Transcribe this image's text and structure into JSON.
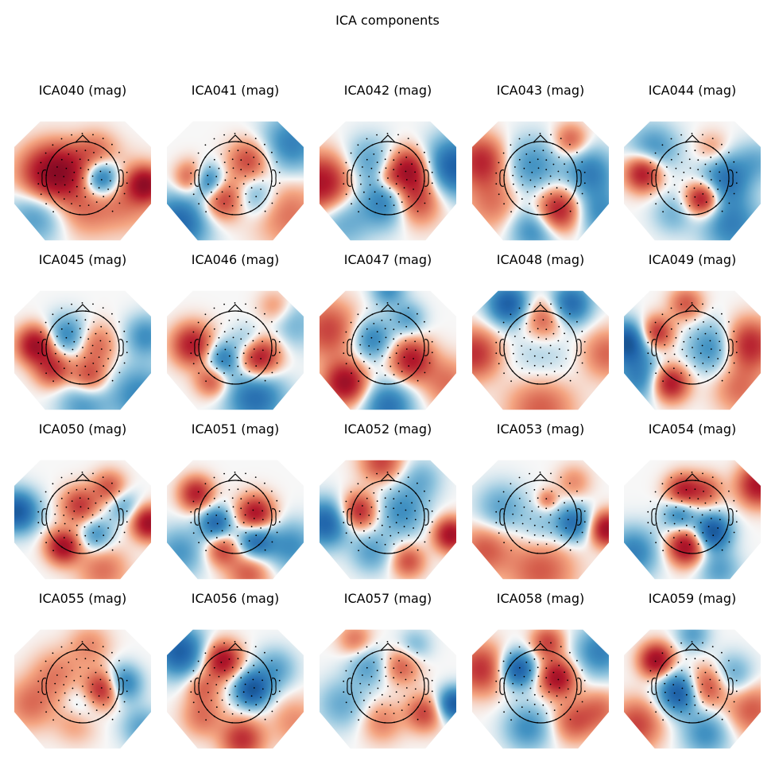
{
  "figure": {
    "title": "ICA components"
  },
  "chart_data": {
    "type": "topomap-grid",
    "title": "ICA components",
    "rows": 4,
    "cols": 5,
    "colormap": {
      "negative": "#053061",
      "mid": "#f7f7f7",
      "positive": "#67001f"
    },
    "components": [
      {
        "label": "ICA040 (mag)",
        "blobs": [
          [
            -0.55,
            0.05,
            0.9,
            0.35
          ],
          [
            0.28,
            0.0,
            -0.95,
            0.22
          ],
          [
            -0.25,
            0.15,
            0.55,
            0.3
          ],
          [
            0.65,
            -0.3,
            0.4,
            0.4
          ],
          [
            0.0,
            -0.5,
            0.35,
            0.35
          ],
          [
            -0.7,
            -0.6,
            -0.5,
            0.35
          ],
          [
            0.2,
            0.45,
            0.4,
            0.25
          ],
          [
            0.95,
            -0.1,
            0.9,
            0.2
          ]
        ]
      },
      {
        "label": "ICA041 (mag)",
        "blobs": [
          [
            -0.45,
            -0.05,
            -0.95,
            0.2
          ],
          [
            -0.65,
            0.0,
            0.75,
            0.2
          ],
          [
            0.2,
            0.3,
            0.6,
            0.25
          ],
          [
            -0.2,
            -0.35,
            0.7,
            0.25
          ],
          [
            0.3,
            -0.3,
            -0.4,
            0.25
          ],
          [
            -0.85,
            -0.75,
            -0.8,
            0.35
          ],
          [
            0.85,
            0.6,
            -0.6,
            0.35
          ],
          [
            0.8,
            -0.6,
            0.4,
            0.4
          ]
        ]
      },
      {
        "label": "ICA042 (mag)",
        "blobs": [
          [
            0.3,
            0.15,
            0.95,
            0.25
          ],
          [
            0.4,
            -0.35,
            0.75,
            0.3
          ],
          [
            -1.0,
            -0.1,
            0.95,
            0.35
          ],
          [
            1.0,
            0.2,
            -0.9,
            0.35
          ],
          [
            0.0,
            -0.4,
            -0.7,
            0.3
          ],
          [
            -0.3,
            0.3,
            -0.4,
            0.3
          ],
          [
            -0.7,
            -0.7,
            -0.4,
            0.35
          ],
          [
            0.0,
            0.0,
            0.3,
            0.15
          ]
        ]
      },
      {
        "label": "ICA043 (mag)",
        "blobs": [
          [
            0.25,
            -0.55,
            0.95,
            0.27
          ],
          [
            -0.9,
            0.3,
            0.75,
            0.3
          ],
          [
            -0.15,
            0.2,
            -0.5,
            0.35
          ],
          [
            0.75,
            0.1,
            -0.6,
            0.3
          ],
          [
            -0.1,
            -0.85,
            -0.6,
            0.3
          ],
          [
            0.9,
            -0.6,
            -0.5,
            0.3
          ],
          [
            0.45,
            0.65,
            0.5,
            0.2
          ],
          [
            -0.7,
            -0.4,
            0.4,
            0.35
          ]
        ]
      },
      {
        "label": "ICA044 (mag)",
        "blobs": [
          [
            0.15,
            -0.35,
            1.0,
            0.2
          ],
          [
            -0.75,
            0.1,
            0.95,
            0.22
          ],
          [
            0.5,
            0.0,
            -0.7,
            0.3
          ],
          [
            0.6,
            -0.8,
            -0.6,
            0.35
          ],
          [
            -0.6,
            0.5,
            -0.5,
            0.3
          ],
          [
            -0.3,
            -0.6,
            -0.3,
            0.25
          ],
          [
            1.0,
            0.3,
            -0.3,
            0.25
          ],
          [
            0.3,
            0.5,
            0.3,
            0.2
          ]
        ]
      },
      {
        "label": "ICA045 (mag)",
        "blobs": [
          [
            -0.72,
            0.05,
            1.0,
            0.22
          ],
          [
            -0.45,
            -0.35,
            0.7,
            0.22
          ],
          [
            0.1,
            -0.5,
            0.6,
            0.22
          ],
          [
            0.2,
            0.05,
            0.45,
            0.25
          ],
          [
            -0.25,
            0.2,
            -0.6,
            0.25
          ],
          [
            0.85,
            -0.8,
            -0.55,
            0.35
          ],
          [
            0.95,
            0.2,
            -0.5,
            0.25
          ],
          [
            0.0,
            -0.95,
            -0.45,
            0.3
          ]
        ]
      },
      {
        "label": "ICA046 (mag)",
        "blobs": [
          [
            0.35,
            -0.15,
            1.0,
            0.25
          ],
          [
            -0.65,
            0.05,
            0.85,
            0.25
          ],
          [
            -0.2,
            -0.2,
            -0.7,
            0.22
          ],
          [
            0.2,
            0.1,
            -0.4,
            0.2
          ],
          [
            0.3,
            -0.85,
            -0.75,
            0.35
          ],
          [
            -0.35,
            -0.55,
            0.6,
            0.2
          ],
          [
            0.9,
            0.4,
            -0.3,
            0.3
          ],
          [
            0.6,
            0.7,
            0.3,
            0.2
          ]
        ]
      },
      {
        "label": "ICA047 (mag)",
        "blobs": [
          [
            -0.65,
            -0.6,
            1.0,
            0.25
          ],
          [
            0.35,
            -0.2,
            0.85,
            0.25
          ],
          [
            -0.25,
            0.15,
            -0.6,
            0.25
          ],
          [
            0.3,
            0.5,
            -0.4,
            0.2
          ],
          [
            0.0,
            -1.0,
            -0.7,
            0.3
          ],
          [
            -0.9,
            0.3,
            0.6,
            0.35
          ],
          [
            0.0,
            1.0,
            -0.5,
            0.2
          ],
          [
            0.9,
            -0.6,
            0.4,
            0.3
          ]
        ]
      },
      {
        "label": "ICA048 (mag)",
        "blobs": [
          [
            -0.5,
            0.75,
            -0.9,
            0.25
          ],
          [
            0.45,
            0.75,
            -0.8,
            0.25
          ],
          [
            0.05,
            0.5,
            0.55,
            0.25
          ],
          [
            0.0,
            -1.0,
            0.5,
            0.4
          ],
          [
            -1.0,
            -0.1,
            0.7,
            0.3
          ],
          [
            1.0,
            -0.1,
            0.45,
            0.3
          ],
          [
            0.0,
            -0.2,
            -0.2,
            0.4
          ]
        ]
      },
      {
        "label": "ICA049 (mag)",
        "blobs": [
          [
            -1.0,
            0.1,
            -1.0,
            0.25
          ],
          [
            -0.35,
            -0.6,
            0.95,
            0.22
          ],
          [
            -0.55,
            0.25,
            0.75,
            0.2
          ],
          [
            0.3,
            0.0,
            -0.55,
            0.3
          ],
          [
            0.85,
            0.05,
            0.8,
            0.3
          ],
          [
            -0.1,
            0.75,
            0.5,
            0.2
          ],
          [
            0.7,
            -0.7,
            0.4,
            0.3
          ],
          [
            -0.8,
            -0.5,
            -0.6,
            0.3
          ]
        ]
      },
      {
        "label": "ICA050 (mag)",
        "blobs": [
          [
            -1.0,
            0.1,
            -0.95,
            0.25
          ],
          [
            1.0,
            -0.1,
            1.0,
            0.2
          ],
          [
            -0.3,
            -0.5,
            0.95,
            0.2
          ],
          [
            -0.05,
            0.2,
            0.65,
            0.22
          ],
          [
            0.4,
            0.5,
            0.55,
            0.2
          ],
          [
            0.2,
            -0.3,
            -0.5,
            0.2
          ],
          [
            0.6,
            0.2,
            -0.4,
            0.2
          ],
          [
            0.3,
            -0.9,
            0.4,
            0.3
          ]
        ]
      },
      {
        "label": "ICA051 (mag)",
        "blobs": [
          [
            0.3,
            0.05,
            0.95,
            0.22
          ],
          [
            -0.6,
            0.4,
            0.8,
            0.2
          ],
          [
            -0.3,
            -0.1,
            -0.8,
            0.2
          ],
          [
            0.3,
            -0.4,
            -0.8,
            0.22
          ],
          [
            -0.2,
            -0.55,
            0.6,
            0.2
          ],
          [
            0.85,
            -0.5,
            -0.5,
            0.3
          ],
          [
            -0.85,
            -0.6,
            -0.45,
            0.3
          ],
          [
            0.2,
            -0.95,
            0.5,
            0.25
          ]
        ]
      },
      {
        "label": "ICA052 (mag)",
        "blobs": [
          [
            -0.45,
            0.1,
            0.8,
            0.22
          ],
          [
            -0.95,
            -0.1,
            -0.85,
            0.28
          ],
          [
            0.95,
            -0.3,
            0.95,
            0.2
          ],
          [
            -0.1,
            0.95,
            0.6,
            0.25
          ],
          [
            0.3,
            -0.75,
            0.55,
            0.2
          ],
          [
            0.2,
            0.1,
            -0.5,
            0.3
          ],
          [
            -0.25,
            -0.6,
            -0.4,
            0.25
          ],
          [
            0.5,
            0.65,
            -0.3,
            0.25
          ]
        ]
      },
      {
        "label": "ICA053 (mag)",
        "blobs": [
          [
            1.0,
            -0.2,
            1.0,
            0.2
          ],
          [
            0.5,
            -0.1,
            -0.75,
            0.22
          ],
          [
            0.0,
            -0.9,
            0.5,
            0.4
          ],
          [
            -0.85,
            -0.55,
            0.5,
            0.3
          ],
          [
            -0.6,
            0.15,
            -0.4,
            0.3
          ],
          [
            0.1,
            0.3,
            0.4,
            0.12
          ],
          [
            0.5,
            0.6,
            0.3,
            0.2
          ],
          [
            0.0,
            -0.2,
            -0.25,
            0.25
          ]
        ]
      },
      {
        "label": "ICA054 (mag)",
        "blobs": [
          [
            0.3,
            -0.25,
            -1.0,
            0.22
          ],
          [
            -0.1,
            -0.5,
            1.0,
            0.22
          ],
          [
            -0.15,
            0.45,
            0.8,
            0.2
          ],
          [
            -0.2,
            0.05,
            -0.6,
            0.2
          ],
          [
            1.0,
            0.55,
            0.9,
            0.25
          ],
          [
            0.2,
            0.45,
            0.5,
            0.2
          ],
          [
            -0.9,
            -0.6,
            -0.6,
            0.3
          ],
          [
            0.4,
            -0.9,
            -0.4,
            0.25
          ]
        ]
      },
      {
        "label": "ICA055 (mag)",
        "blobs": [
          [
            0.3,
            -0.05,
            0.9,
            0.22
          ],
          [
            0.6,
            0.05,
            -0.7,
            0.22
          ],
          [
            -0.4,
            0.2,
            0.35,
            0.3
          ],
          [
            0.0,
            -0.3,
            -0.3,
            0.25
          ],
          [
            -0.1,
            -0.6,
            0.3,
            0.25
          ],
          [
            0.9,
            -0.7,
            -0.4,
            0.25
          ],
          [
            0.1,
            0.7,
            0.3,
            0.25
          ],
          [
            -0.8,
            -0.3,
            0.4,
            0.3
          ]
        ]
      },
      {
        "label": "ICA056 (mag)",
        "blobs": [
          [
            -0.2,
            0.45,
            0.95,
            0.22
          ],
          [
            0.25,
            -0.05,
            -0.95,
            0.22
          ],
          [
            -0.85,
            0.6,
            -0.9,
            0.3
          ],
          [
            0.1,
            -0.9,
            0.7,
            0.25
          ],
          [
            -0.5,
            -0.5,
            0.4,
            0.25
          ],
          [
            0.6,
            0.3,
            -0.4,
            0.25
          ],
          [
            -0.5,
            0.0,
            0.4,
            0.2
          ],
          [
            0.9,
            -0.6,
            0.3,
            0.3
          ]
        ]
      },
      {
        "label": "ICA057 (mag)",
        "blobs": [
          [
            1.0,
            -0.3,
            -0.95,
            0.2
          ],
          [
            0.55,
            -0.45,
            0.6,
            0.22
          ],
          [
            0.2,
            0.35,
            0.5,
            0.22
          ],
          [
            -0.3,
            0.35,
            -0.4,
            0.25
          ],
          [
            -0.7,
            -0.3,
            -0.35,
            0.3
          ],
          [
            -0.1,
            -0.6,
            0.35,
            0.25
          ],
          [
            0.4,
            0.7,
            -0.3,
            0.2
          ],
          [
            -0.5,
            0.8,
            0.4,
            0.2
          ]
        ]
      },
      {
        "label": "ICA058 (mag)",
        "blobs": [
          [
            0.25,
            0.15,
            0.95,
            0.22
          ],
          [
            -0.35,
            0.3,
            -0.95,
            0.22
          ],
          [
            -0.9,
            0.3,
            0.7,
            0.3
          ],
          [
            0.9,
            0.6,
            -0.6,
            0.3
          ],
          [
            -0.2,
            -0.7,
            -0.5,
            0.28
          ],
          [
            0.5,
            -0.6,
            0.5,
            0.25
          ],
          [
            0.1,
            0.75,
            0.6,
            0.2
          ],
          [
            0.9,
            -0.4,
            0.4,
            0.25
          ]
        ]
      },
      {
        "label": "ICA059 (mag)",
        "blobs": [
          [
            -0.55,
            0.45,
            1.0,
            0.2
          ],
          [
            -0.2,
            -0.1,
            -1.0,
            0.25
          ],
          [
            0.2,
            0.0,
            0.7,
            0.25
          ],
          [
            -0.85,
            -0.65,
            0.6,
            0.3
          ],
          [
            0.6,
            0.2,
            -0.4,
            0.25
          ],
          [
            0.2,
            -0.8,
            -0.5,
            0.28
          ],
          [
            0.9,
            -0.4,
            0.5,
            0.3
          ],
          [
            0.0,
            0.9,
            -0.4,
            0.2
          ]
        ]
      }
    ]
  }
}
